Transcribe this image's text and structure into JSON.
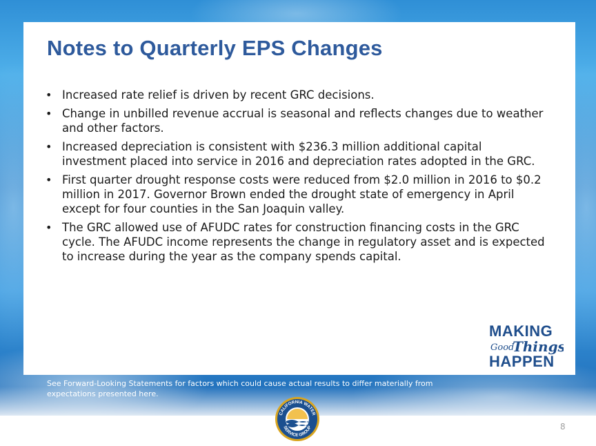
{
  "slide": {
    "title": "Notes to Quarterly EPS Changes",
    "bullets": [
      "Increased rate relief is driven by recent GRC decisions.",
      "Change in unbilled revenue accrual is seasonal and reflects changes due to weather and other factors.",
      "Increased depreciation is consistent with $236.3 million additional capital investment placed into service in 2016 and depreciation rates adopted in the GRC.",
      "First quarter drought response costs were reduced from $2.0 million in 2016 to $0.2 million in 2017. Governor Brown ended the drought state of emergency in April except for four counties in the San Joaquin valley.",
      "The GRC allowed use of AFUDC rates for construction financing costs in the GRC cycle. The AFUDC income represents the change in regulatory asset and is expected to increase during the year as the company spends capital."
    ],
    "bullet_marker": "•",
    "footnote": "See Forward-Looking Statements for factors which could cause actual results to differ materially from expectations presented here.",
    "page_number": "8"
  },
  "logo": {
    "line1": "MAKING",
    "line2a": "Good",
    "line2b": "Things",
    "line3": "HAPPEN"
  },
  "seal": {
    "top_text": "CALIFORNIA WATER",
    "bottom_text": "SERVICE GROUP"
  },
  "colors": {
    "title": "#2e5a9c",
    "logo": "#1f4e8c",
    "seal_gold": "#d9a520",
    "seal_blue": "#1b4f8f"
  }
}
